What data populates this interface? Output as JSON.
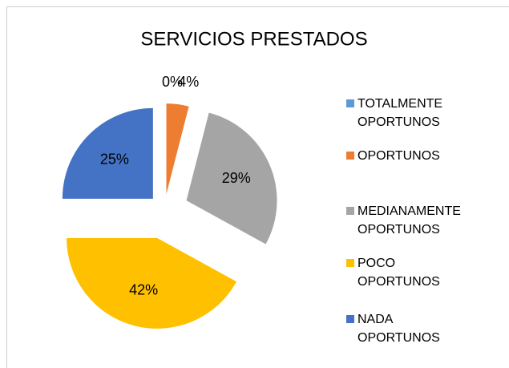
{
  "chart_data": {
    "type": "pie",
    "title": "SERVICIOS PRESTADOS",
    "categories": [
      "TOTALMENTE OPORTUNOS",
      "OPORTUNOS",
      "MEDIANAMENTE OPORTUNOS",
      "POCO OPORTUNOS",
      "NADA OPORTUNOS"
    ],
    "values": [
      0,
      4,
      29,
      42,
      25
    ],
    "value_labels": [
      "0%",
      "4%",
      "29%",
      "42%",
      "25%"
    ],
    "colors": [
      "#5b9bd5",
      "#ed7d31",
      "#a5a5a5",
      "#ffc000",
      "#4472c4"
    ],
    "legend": "right"
  }
}
